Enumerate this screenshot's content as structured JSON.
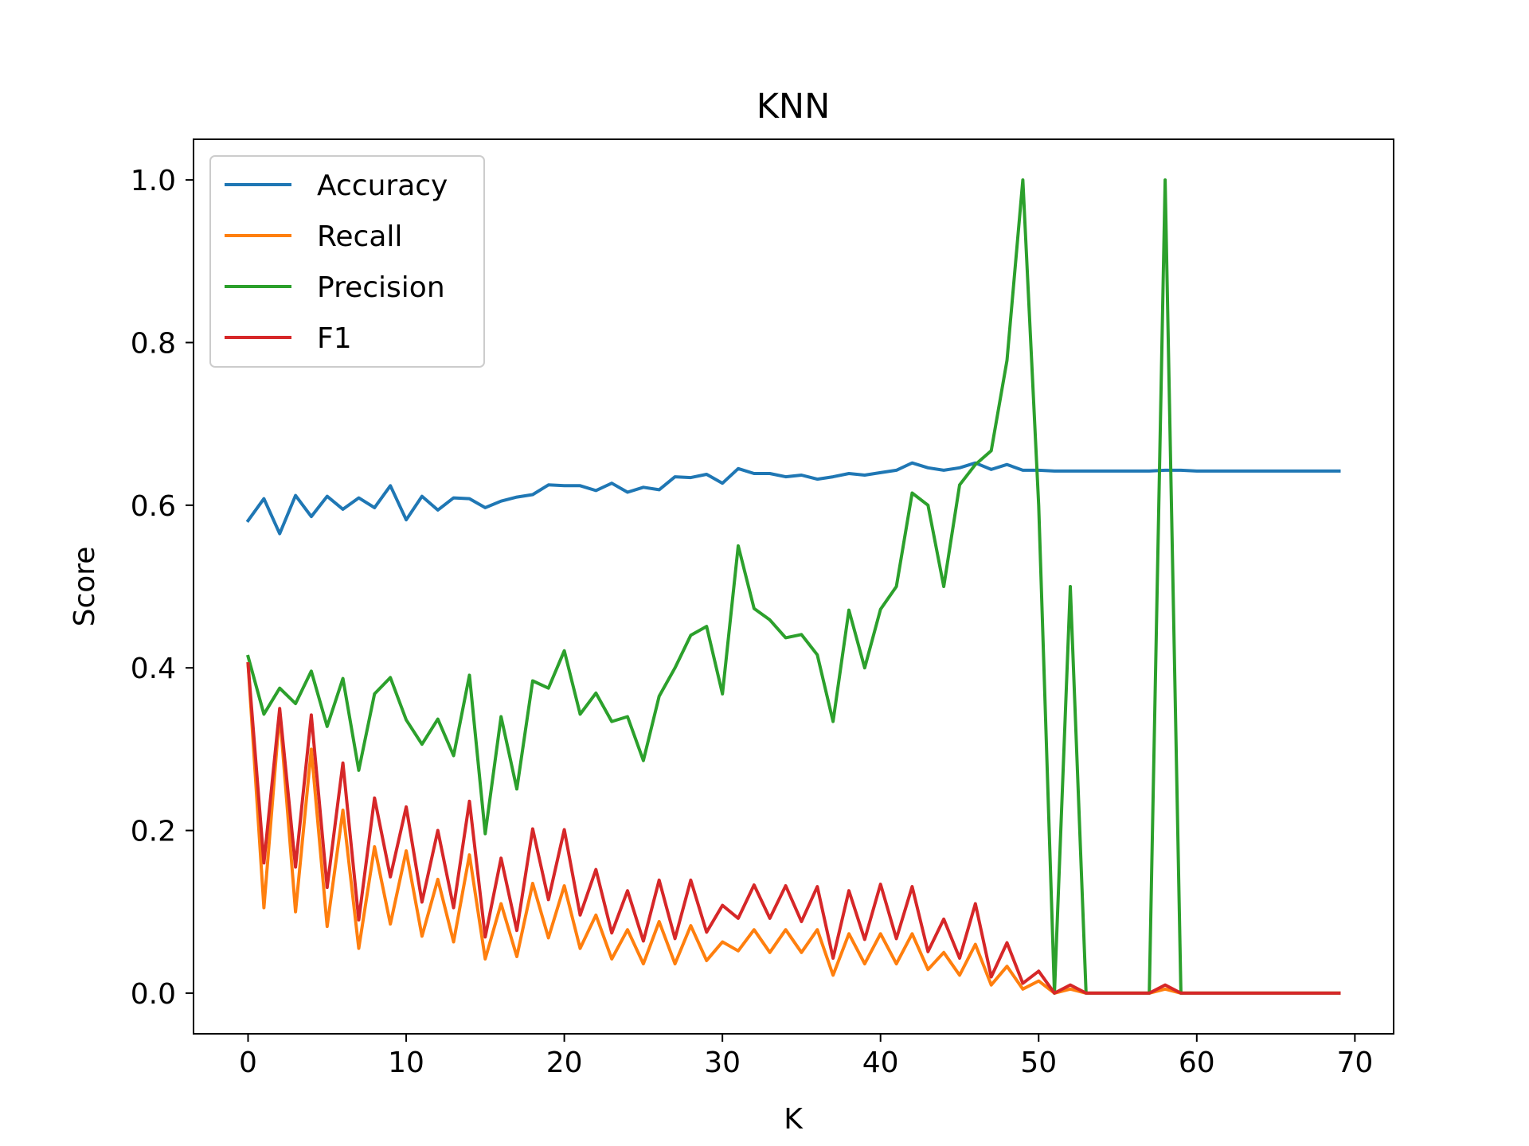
{
  "chart_data": {
    "type": "line",
    "title": "KNN",
    "xlabel": "K",
    "ylabel": "Score",
    "xlim": [
      -3.45,
      72.45
    ],
    "ylim": [
      -0.05,
      1.05
    ],
    "xticks": [
      0,
      10,
      20,
      30,
      40,
      50,
      60,
      70
    ],
    "yticks": [
      0.0,
      0.2,
      0.4,
      0.6,
      0.8,
      1.0
    ],
    "xtick_labels": [
      "0",
      "10",
      "20",
      "30",
      "40",
      "50",
      "60",
      "70"
    ],
    "ytick_labels": [
      "0.0",
      "0.2",
      "0.4",
      "0.6",
      "0.8",
      "1.0"
    ],
    "grid": false,
    "legend_position": "top-left",
    "x": [
      0,
      1,
      2,
      3,
      4,
      5,
      6,
      7,
      8,
      9,
      10,
      11,
      12,
      13,
      14,
      15,
      16,
      17,
      18,
      19,
      20,
      21,
      22,
      23,
      24,
      25,
      26,
      27,
      28,
      29,
      30,
      31,
      32,
      33,
      34,
      35,
      36,
      37,
      38,
      39,
      40,
      41,
      42,
      43,
      44,
      45,
      46,
      47,
      48,
      49,
      50,
      51,
      52,
      53,
      54,
      55,
      56,
      57,
      58,
      59,
      60,
      61,
      62,
      63,
      64,
      65,
      66,
      67,
      68,
      69
    ],
    "series": [
      {
        "name": "Accuracy",
        "color": "#1f77b4",
        "values": [
          0.581,
          0.608,
          0.565,
          0.612,
          0.586,
          0.611,
          0.595,
          0.609,
          0.597,
          0.624,
          0.582,
          0.611,
          0.594,
          0.609,
          0.608,
          0.597,
          0.605,
          0.61,
          0.613,
          0.625,
          0.624,
          0.624,
          0.618,
          0.627,
          0.616,
          0.622,
          0.619,
          0.635,
          0.634,
          0.638,
          0.627,
          0.645,
          0.639,
          0.639,
          0.635,
          0.637,
          0.632,
          0.635,
          0.639,
          0.637,
          0.64,
          0.643,
          0.652,
          0.646,
          0.643,
          0.646,
          0.652,
          0.644,
          0.65,
          0.643,
          0.643,
          0.642,
          0.642,
          0.642,
          0.642,
          0.642,
          0.642,
          0.642,
          0.643,
          0.643,
          0.642,
          0.642,
          0.642,
          0.642,
          0.642,
          0.642,
          0.642,
          0.642,
          0.642,
          0.642
        ]
      },
      {
        "name": "Recall",
        "color": "#ff7f0e",
        "values": [
          0.405,
          0.105,
          0.345,
          0.1,
          0.3,
          0.082,
          0.225,
          0.055,
          0.18,
          0.085,
          0.175,
          0.07,
          0.14,
          0.063,
          0.17,
          0.042,
          0.11,
          0.045,
          0.135,
          0.068,
          0.132,
          0.055,
          0.096,
          0.042,
          0.078,
          0.036,
          0.088,
          0.036,
          0.083,
          0.04,
          0.063,
          0.052,
          0.078,
          0.05,
          0.078,
          0.05,
          0.078,
          0.022,
          0.073,
          0.036,
          0.073,
          0.036,
          0.073,
          0.029,
          0.05,
          0.022,
          0.06,
          0.01,
          0.033,
          0.005,
          0.015,
          0.0,
          0.005,
          0.0,
          0.0,
          0.0,
          0.0,
          0.0,
          0.005,
          0.0,
          0.0,
          0.0,
          0.0,
          0.0,
          0.0,
          0.0,
          0.0,
          0.0,
          0.0,
          0.0
        ]
      },
      {
        "name": "Precision",
        "color": "#2ca02c",
        "values": [
          0.414,
          0.343,
          0.375,
          0.356,
          0.396,
          0.328,
          0.387,
          0.274,
          0.368,
          0.388,
          0.336,
          0.306,
          0.337,
          0.292,
          0.391,
          0.196,
          0.34,
          0.251,
          0.384,
          0.375,
          0.421,
          0.343,
          0.369,
          0.334,
          0.34,
          0.286,
          0.365,
          0.4,
          0.44,
          0.451,
          0.368,
          0.55,
          0.473,
          0.459,
          0.437,
          0.441,
          0.416,
          0.334,
          0.471,
          0.4,
          0.472,
          0.5,
          0.615,
          0.6,
          0.5,
          0.625,
          0.65,
          0.667,
          0.778,
          1.0,
          0.6,
          0.0,
          0.5,
          0.0,
          0.0,
          0.0,
          0.0,
          0.0,
          1.0,
          0.0,
          0.0,
          0.0,
          0.0,
          0.0,
          0.0,
          0.0,
          0.0,
          0.0,
          0.0,
          0.0
        ]
      },
      {
        "name": "F1",
        "color": "#d62728",
        "values": [
          0.405,
          0.16,
          0.35,
          0.155,
          0.342,
          0.13,
          0.283,
          0.09,
          0.24,
          0.143,
          0.229,
          0.112,
          0.2,
          0.105,
          0.236,
          0.069,
          0.166,
          0.077,
          0.202,
          0.115,
          0.201,
          0.096,
          0.152,
          0.074,
          0.126,
          0.064,
          0.139,
          0.067,
          0.139,
          0.075,
          0.108,
          0.092,
          0.133,
          0.092,
          0.132,
          0.088,
          0.131,
          0.043,
          0.126,
          0.066,
          0.134,
          0.067,
          0.131,
          0.051,
          0.091,
          0.043,
          0.11,
          0.02,
          0.062,
          0.012,
          0.027,
          0.0,
          0.01,
          0.0,
          0.0,
          0.0,
          0.0,
          0.0,
          0.01,
          0.0,
          0.0,
          0.0,
          0.0,
          0.0,
          0.0,
          0.0,
          0.0,
          0.0,
          0.0,
          0.0
        ]
      }
    ]
  }
}
